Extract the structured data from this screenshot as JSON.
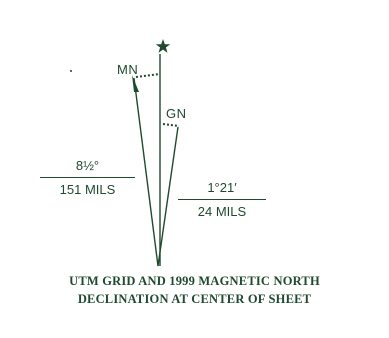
{
  "diagram": {
    "star_icon": "star-icon",
    "labels": {
      "magnetic_north": "MN",
      "grid_north": "GN"
    },
    "gn_to_mn_angle": {
      "degrees": "8½°",
      "mils": "151 MILS"
    },
    "gn_to_tn_angle": {
      "degrees": "1°21′",
      "mils": "24 MILS"
    },
    "caption": {
      "line1": "UTM GRID AND 1999 MAGNETIC NORTH",
      "line2": "DECLINATION AT CENTER OF SHEET"
    }
  },
  "colors": {
    "ink": "#1f4a2e",
    "background": "#ffffff"
  }
}
